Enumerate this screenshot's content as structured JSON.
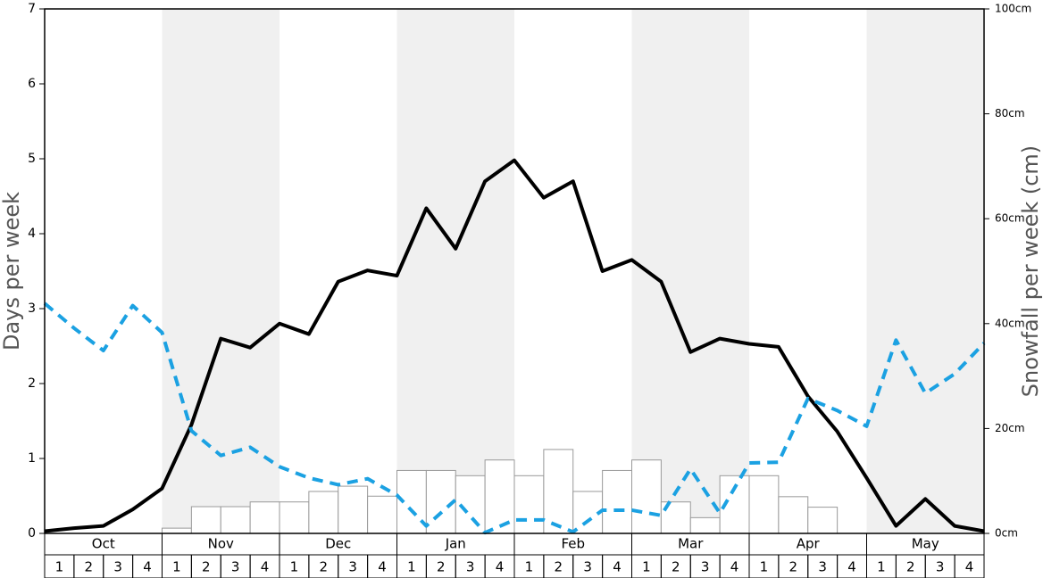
{
  "chart_data": {
    "type": "line",
    "months": [
      "Oct",
      "Nov",
      "Dec",
      "Jan",
      "Feb",
      "Mar",
      "Apr",
      "May"
    ],
    "weeks": [
      1,
      2,
      3,
      4
    ],
    "ylabel": "Days per week",
    "y2label": "Snowfall per week (cm)",
    "ylim": [
      0,
      7
    ],
    "yticks": [
      0,
      1,
      2,
      3,
      4,
      5,
      6,
      7
    ],
    "y2lim": [
      0,
      100
    ],
    "y2ticks": [
      {
        "value": 0,
        "label": "0cm"
      },
      {
        "value": 20,
        "label": "20cm"
      },
      {
        "value": 40,
        "label": "40cm"
      },
      {
        "value": 60,
        "label": "60cm"
      },
      {
        "value": 80,
        "label": "80cm"
      },
      {
        "value": 100,
        "label": "100cm"
      }
    ],
    "series": [
      {
        "color": "#000000",
        "style": "solid",
        "values": [
          0.03,
          0.07,
          0.1,
          0.32,
          0.6,
          1.45,
          2.6,
          2.48,
          2.8,
          2.66,
          3.36,
          3.51,
          3.44,
          4.34,
          3.8,
          4.7,
          4.98,
          4.48,
          4.7,
          3.5,
          3.65,
          3.36,
          2.42,
          2.6,
          2.53,
          2.49,
          1.83,
          1.36,
          0.74,
          0.1,
          0.46,
          0.1,
          0.03
        ]
      },
      {
        "color": "#1ba1e2",
        "style": "dashed",
        "values": [
          3.07,
          2.74,
          2.44,
          3.04,
          2.68,
          1.37,
          1.04,
          1.15,
          0.89,
          0.74,
          0.65,
          0.73,
          0.51,
          0.1,
          0.45,
          0.01,
          0.18,
          0.18,
          0.02,
          0.31,
          0.31,
          0.24,
          0.86,
          0.27,
          0.94,
          0.95,
          1.8,
          1.64,
          1.43,
          2.58,
          1.87,
          2.13,
          2.54
        ]
      },
      {
        "color": "#ffffff",
        "type": "bar",
        "axis": "y2",
        "values": [
          0,
          0,
          0,
          0,
          1,
          5.1,
          5.1,
          6,
          6,
          8,
          9,
          7.1,
          12,
          12,
          11,
          14,
          11,
          16,
          8,
          12,
          14,
          6,
          3,
          11,
          11,
          7,
          5,
          0,
          0,
          0,
          0,
          0
        ]
      }
    ]
  }
}
